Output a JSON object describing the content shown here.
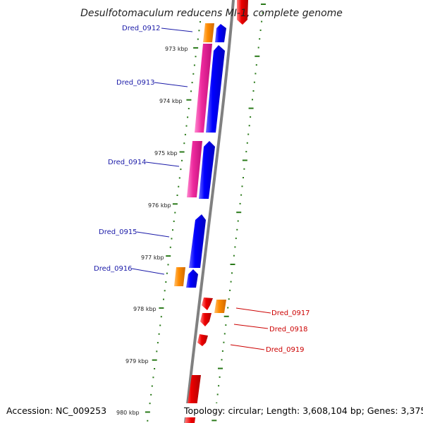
{
  "title": "Desulfotomaculum reducens MI-1, complete genome",
  "accession": "Accession: NC_009253",
  "topology": "Topology: circular; Length: 3,608,104 bp; Genes: 3,375",
  "colors": {
    "forward_label": "#1a1aa8",
    "reverse_label": "#cc0000",
    "cds_blue": "#0000ff",
    "cds_orange": "#ff8c00",
    "cds_pink": "#ee2a9e",
    "cds_red": "#ee0000",
    "gc_skew": "#2a7a1a",
    "backbone": "#808080"
  },
  "ruler": {
    "ticks": [
      {
        "label": "973 kbp"
      },
      {
        "label": "974 kbp"
      },
      {
        "label": "975 kbp"
      },
      {
        "label": "976 kbp"
      },
      {
        "label": "977 kbp"
      },
      {
        "label": "978 kbp"
      },
      {
        "label": "979 kbp"
      },
      {
        "label": "980 kbp"
      }
    ]
  },
  "genes": {
    "forward": [
      {
        "label": "Dred_0912"
      },
      {
        "label": "Dred_0913"
      },
      {
        "label": "Dred_0914"
      },
      {
        "label": "Dred_0915"
      },
      {
        "label": "Dred_0916"
      }
    ],
    "reverse": [
      {
        "label": "Dred_0917"
      },
      {
        "label": "Dred_0918"
      },
      {
        "label": "Dred_0919"
      }
    ]
  }
}
